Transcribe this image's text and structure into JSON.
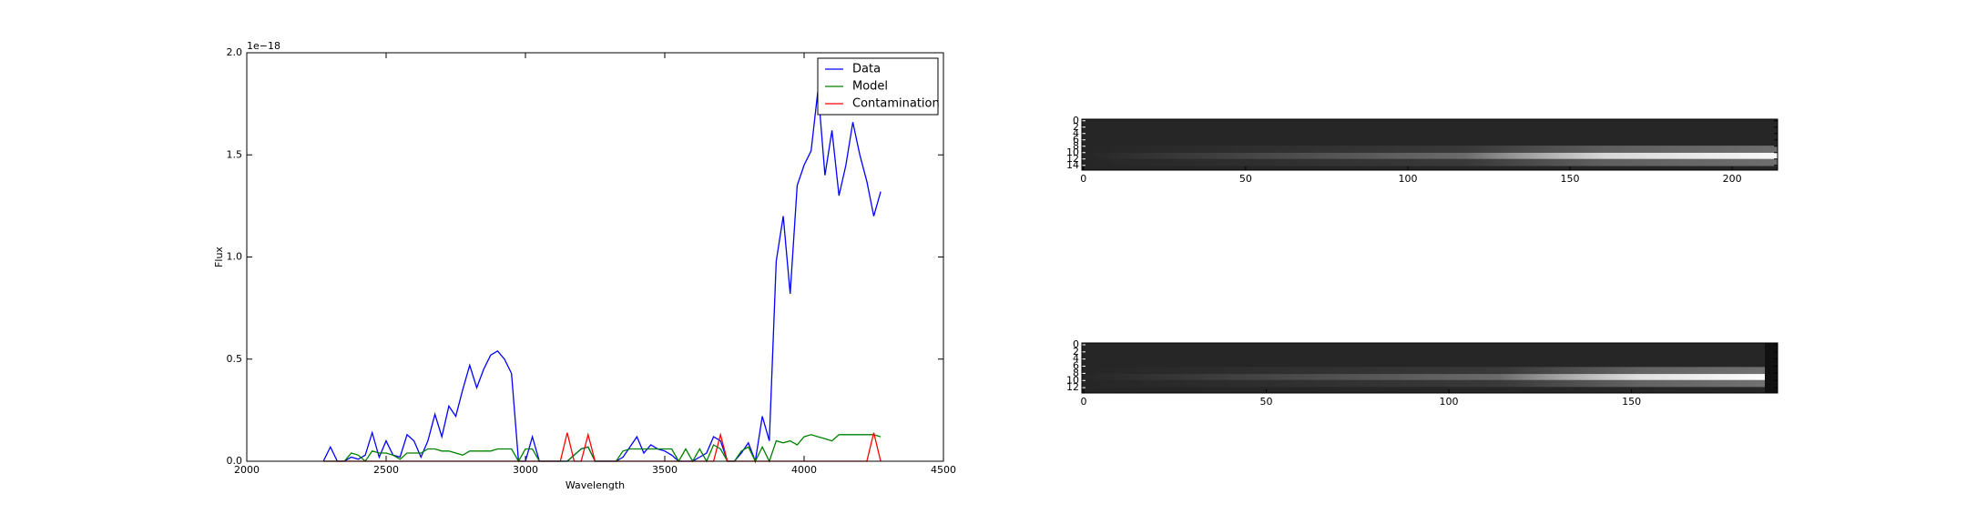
{
  "chart_data": [
    {
      "type": "line",
      "x_label": "Wavelength",
      "y_label": "Flux",
      "offset_label": "1e−18",
      "xlim": [
        2000,
        4500
      ],
      "xticks": [
        2000,
        2500,
        3000,
        3500,
        4000,
        4500
      ],
      "ylim": [
        0,
        2.0
      ],
      "yticks": [
        {
          "value": 0,
          "label": "0.0"
        },
        0.5,
        {
          "value": 1,
          "label": "1.0"
        },
        1.5,
        {
          "value": 2,
          "label": "2.0"
        }
      ],
      "legend": "upper right",
      "x": [
        2275,
        2300,
        2325,
        2350,
        2375,
        2400,
        2425,
        2450,
        2475,
        2500,
        2525,
        2550,
        2575,
        2600,
        2625,
        2650,
        2675,
        2700,
        2725,
        2750,
        2775,
        2800,
        2825,
        2850,
        2875,
        2900,
        2925,
        2950,
        2975,
        3000,
        3025,
        3050,
        3075,
        3100,
        3125,
        3150,
        3175,
        3200,
        3225,
        3250,
        3275,
        3300,
        3325,
        3350,
        3375,
        3400,
        3425,
        3450,
        3475,
        3500,
        3525,
        3550,
        3575,
        3600,
        3625,
        3650,
        3675,
        3700,
        3725,
        3750,
        3775,
        3800,
        3825,
        3850,
        3875,
        3900,
        3925,
        3950,
        3975,
        4000,
        4025,
        4050,
        4075,
        4100,
        4125,
        4150,
        4175,
        4200,
        4225,
        4250,
        4275
      ],
      "series": [
        {
          "name": "Data",
          "color": "#0000ff",
          "values": [
            0,
            0.07,
            0,
            0,
            0.02,
            0.01,
            0.03,
            0.14,
            0.02,
            0.1,
            0.03,
            0.02,
            0.13,
            0.1,
            0.02,
            0.1,
            0.23,
            0.12,
            0.27,
            0.22,
            0.35,
            0.47,
            0.36,
            0.45,
            0.52,
            0.54,
            0.5,
            0.43,
            0,
            0,
            0.12,
            0,
            0,
            0,
            0,
            0,
            0.03,
            0.06,
            0.07,
            0,
            0,
            0,
            0,
            0.02,
            0.07,
            0.12,
            0.04,
            0.08,
            0.06,
            0.05,
            0.03,
            0,
            0,
            0,
            0.02,
            0.04,
            0.12,
            0.1,
            0,
            0,
            0.04,
            0.09,
            0,
            0.22,
            0.1,
            0.98,
            1.2,
            0.82,
            1.35,
            1.45,
            1.52,
            1.82,
            1.4,
            1.62,
            1.3,
            1.45,
            1.66,
            1.5,
            1.37,
            1.2,
            1.32
          ]
        },
        {
          "name": "Model",
          "color": "#008000",
          "values": [
            0,
            0,
            0,
            0,
            0.04,
            0.03,
            0,
            0.05,
            0.04,
            0.04,
            0.03,
            0.01,
            0.04,
            0.04,
            0.04,
            0.06,
            0.06,
            0.05,
            0.05,
            0.04,
            0.03,
            0.05,
            0.05,
            0.05,
            0.05,
            0.06,
            0.06,
            0.06,
            0,
            0.06,
            0.06,
            0,
            0,
            0,
            0,
            0,
            0.03,
            0.06,
            0.07,
            0,
            0,
            0,
            0,
            0.05,
            0.06,
            0.06,
            0.06,
            0.06,
            0.06,
            0.06,
            0.06,
            0,
            0.06,
            0,
            0.06,
            0,
            0.08,
            0.06,
            0,
            0,
            0.05,
            0.07,
            0,
            0.07,
            0,
            0.1,
            0.09,
            0.1,
            0.08,
            0.12,
            0.13,
            0.12,
            0.11,
            0.1,
            0.13,
            0.13,
            0.13,
            0.13,
            0.13,
            0.13,
            0.12
          ]
        },
        {
          "name": "Contamination",
          "color": "#ff0000",
          "values": [
            0,
            0,
            0,
            0,
            0,
            0,
            0,
            0,
            0,
            0,
            0,
            0,
            0,
            0,
            0,
            0,
            0,
            0,
            0,
            0,
            0,
            0,
            0,
            0,
            0,
            0,
            0,
            0,
            0,
            0,
            0,
            0,
            0,
            0,
            0,
            0.14,
            0,
            0,
            0.13,
            0,
            0,
            0,
            0,
            0,
            0,
            0,
            0,
            0,
            0,
            0,
            0,
            0,
            0,
            0,
            0,
            0,
            0,
            0.13,
            0,
            0,
            0,
            0,
            0,
            0,
            0,
            0,
            0,
            0,
            0,
            0,
            0,
            0,
            0,
            0,
            0,
            0,
            0,
            0,
            0,
            0.14,
            0
          ]
        }
      ]
    },
    {
      "type": "image",
      "xlim": [
        -0.5,
        214
      ],
      "xticks": [
        0,
        50,
        100,
        150,
        200
      ],
      "ylim": [
        -0.5,
        15.5
      ],
      "yticks": [
        0,
        2,
        4,
        6,
        8,
        10,
        12,
        14
      ]
    },
    {
      "type": "image",
      "xlim": [
        -0.5,
        190
      ],
      "xticks": [
        0,
        50,
        100,
        150
      ],
      "ylim": [
        -0.5,
        13.5
      ],
      "yticks": [
        0,
        2,
        4,
        6,
        8,
        10,
        12
      ]
    }
  ]
}
